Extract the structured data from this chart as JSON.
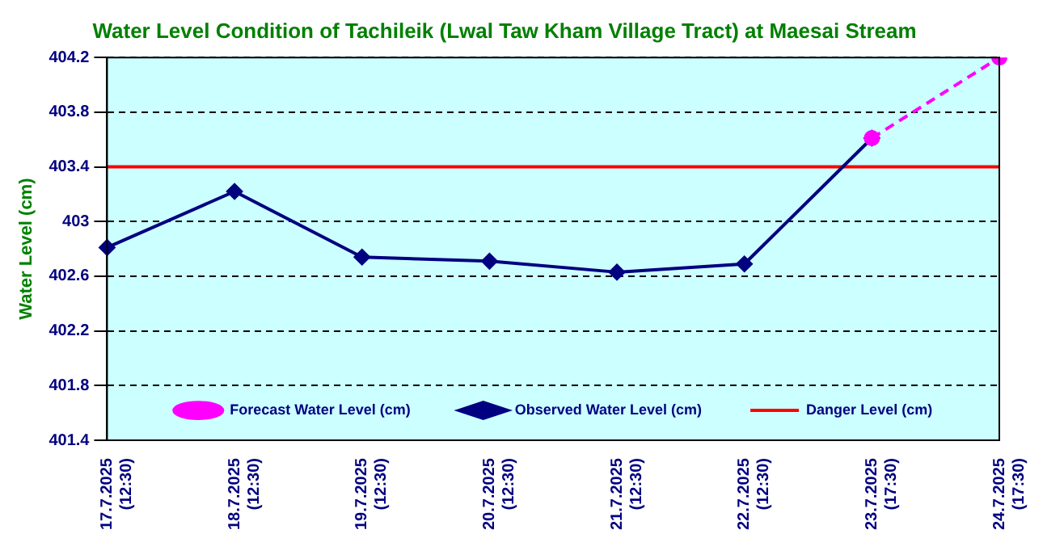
{
  "chart_data": {
    "type": "line",
    "title": "Water Level Condition of Tachileik (Lwal Taw Kham Village Tract) at Maesai Stream",
    "ylabel": "Water Level (cm)",
    "categories": [
      "17.7.2025 (12:30)",
      "18.7.2025 (12:30)",
      "19.7.2025 (12:30)",
      "20.7.2025 (12:30)",
      "21.7.2025 (12:30)",
      "22.7.2025 (12:30)",
      "23.7.2025 (17:30)",
      "24.7.2025 (17:30)"
    ],
    "series": [
      {
        "name": "Observed Water Level (cm)",
        "color": "#000080",
        "marker": "diamond",
        "line_style": "solid",
        "values": [
          402.81,
          403.22,
          402.74,
          402.71,
          402.63,
          402.69,
          403.61,
          null
        ]
      },
      {
        "name": "Forecast Water Level (cm)",
        "color": "#ff00ff",
        "marker": "circle",
        "line_style": "dashed",
        "values": [
          null,
          null,
          null,
          null,
          null,
          null,
          403.61,
          404.2
        ]
      }
    ],
    "ref_lines": [
      {
        "axis": "y",
        "value": 403.4,
        "label": "Danger Level (cm)",
        "color": "#ff0000"
      }
    ],
    "ylim": [
      401.4,
      404.2
    ],
    "yticks": [
      401.4,
      401.8,
      402.2,
      402.6,
      403,
      403.4,
      403.8,
      404.2
    ],
    "grid": "y",
    "legend": "bottom"
  }
}
